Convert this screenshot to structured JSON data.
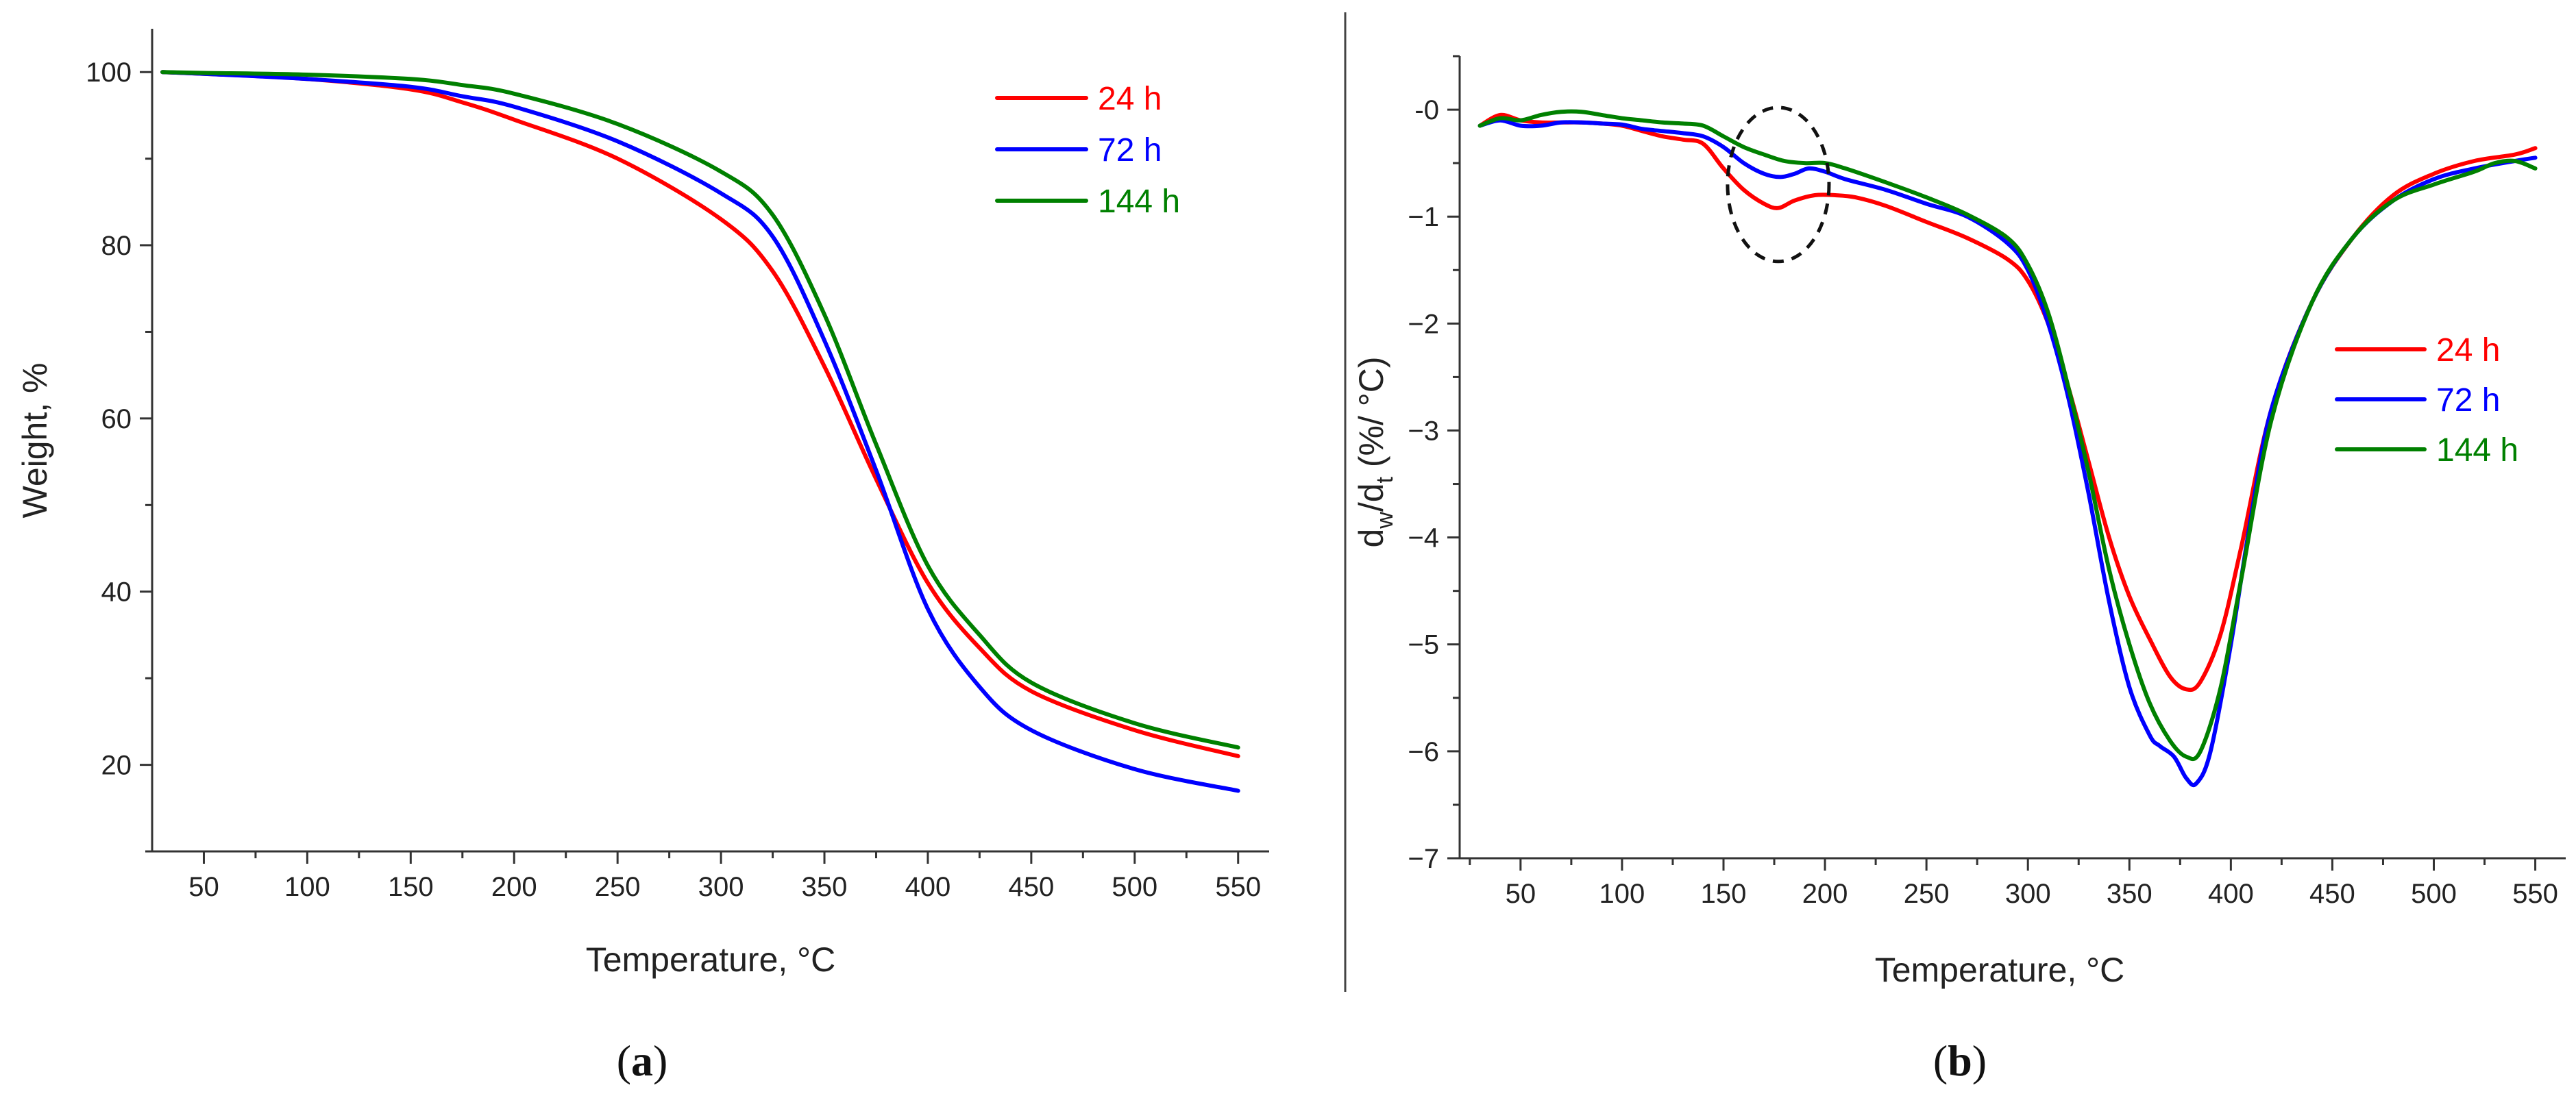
{
  "chart_data": [
    {
      "type": "line",
      "panel": "a",
      "title": "",
      "xlabel": "Temperature, °C",
      "ylabel": "Weight, %",
      "xlim": [
        25,
        565
      ],
      "ylim": [
        10,
        105
      ],
      "xticks": [
        50,
        100,
        150,
        200,
        250,
        300,
        350,
        400,
        450,
        500,
        550
      ],
      "yticks": [
        20,
        40,
        60,
        80,
        100
      ],
      "grid": false,
      "legend_position": "top-right",
      "series": [
        {
          "name": "24 h",
          "color": "#ff0000",
          "x": [
            30,
            50,
            100,
            150,
            175,
            200,
            250,
            300,
            325,
            350,
            375,
            400,
            425,
            450,
            500,
            550
          ],
          "y": [
            100,
            99.8,
            99.2,
            98,
            96.5,
            94.5,
            90,
            83,
            77,
            66,
            53,
            41,
            33.5,
            28.5,
            24,
            21
          ]
        },
        {
          "name": "72 h",
          "color": "#0000ff",
          "x": [
            30,
            50,
            100,
            150,
            175,
            200,
            250,
            300,
            325,
            350,
            375,
            400,
            425,
            450,
            500,
            550
          ],
          "y": [
            100,
            99.8,
            99.2,
            98.3,
            97.2,
            96,
            92,
            86,
            81,
            69,
            54,
            38,
            29,
            24,
            19.5,
            17
          ]
        },
        {
          "name": "144 h",
          "color": "#008000",
          "x": [
            30,
            50,
            100,
            150,
            175,
            200,
            250,
            300,
            325,
            350,
            375,
            400,
            425,
            450,
            500,
            550
          ],
          "y": [
            100,
            99.9,
            99.7,
            99.2,
            98.5,
            97.5,
            94,
            88.5,
            83.5,
            72,
            57,
            43,
            35,
            29.5,
            24.8,
            22
          ]
        }
      ]
    },
    {
      "type": "line",
      "panel": "b",
      "title": "",
      "xlabel": "Temperature, °C",
      "ylabel_main": "d",
      "ylabel_sub1": "w",
      "ylabel_mid": "/d",
      "ylabel_sub2": "t",
      "ylabel_tail": " (%/ °C)",
      "xlim": [
        20,
        565
      ],
      "ylim": [
        -7,
        0.5
      ],
      "xticks": [
        50,
        100,
        150,
        200,
        250,
        300,
        350,
        400,
        450,
        500,
        550
      ],
      "yticks": [
        0,
        -1,
        -2,
        -3,
        -4,
        -5,
        -6,
        -7
      ],
      "ytick_labels": [
        "-0",
        "−1",
        "−2",
        "−3",
        "−4",
        "−5",
        "−6",
        "−7"
      ],
      "grid": false,
      "legend_position": "right",
      "annotation": {
        "type": "dashed-ellipse",
        "center": [
          177,
          -0.7
        ],
        "radius_x": 25,
        "radius_y": 0.72
      },
      "series": [
        {
          "name": "24 h",
          "color": "#ff0000",
          "x": [
            30,
            40,
            50,
            60,
            70,
            80,
            90,
            100,
            110,
            120,
            130,
            140,
            150,
            160,
            170,
            177,
            185,
            195,
            205,
            215,
            230,
            250,
            270,
            290,
            300,
            310,
            320,
            330,
            340,
            350,
            360,
            370,
            378,
            385,
            395,
            405,
            420,
            440,
            460,
            480,
            500,
            520,
            540,
            550
          ],
          "y": [
            -0.15,
            -0.05,
            -0.1,
            -0.12,
            -0.12,
            -0.12,
            -0.13,
            -0.15,
            -0.2,
            -0.25,
            -0.28,
            -0.32,
            -0.55,
            -0.75,
            -0.88,
            -0.92,
            -0.85,
            -0.8,
            -0.8,
            -0.82,
            -0.9,
            -1.05,
            -1.2,
            -1.4,
            -1.6,
            -2.0,
            -2.6,
            -3.3,
            -4.0,
            -4.55,
            -4.95,
            -5.3,
            -5.42,
            -5.35,
            -4.9,
            -4.1,
            -2.8,
            -1.8,
            -1.2,
            -0.8,
            -0.6,
            -0.48,
            -0.42,
            -0.36
          ]
        },
        {
          "name": "72 h",
          "color": "#0000ff",
          "x": [
            30,
            40,
            50,
            60,
            70,
            80,
            90,
            100,
            110,
            120,
            130,
            140,
            150,
            160,
            170,
            178,
            185,
            192,
            200,
            210,
            230,
            250,
            270,
            290,
            300,
            310,
            320,
            330,
            340,
            350,
            360,
            365,
            372,
            378,
            383,
            390,
            400,
            410,
            420,
            440,
            460,
            480,
            500,
            520,
            540,
            550
          ],
          "y": [
            -0.15,
            -0.1,
            -0.15,
            -0.15,
            -0.12,
            -0.12,
            -0.13,
            -0.14,
            -0.18,
            -0.2,
            -0.22,
            -0.25,
            -0.35,
            -0.5,
            -0.6,
            -0.63,
            -0.6,
            -0.55,
            -0.58,
            -0.65,
            -0.75,
            -0.88,
            -1.0,
            -1.25,
            -1.5,
            -2.0,
            -2.7,
            -3.6,
            -4.6,
            -5.4,
            -5.85,
            -5.95,
            -6.05,
            -6.25,
            -6.3,
            -6.0,
            -5.0,
            -3.8,
            -2.8,
            -1.8,
            -1.2,
            -0.85,
            -0.65,
            -0.55,
            -0.48,
            -0.45
          ]
        },
        {
          "name": "144 h",
          "color": "#008000",
          "x": [
            30,
            40,
            50,
            60,
            70,
            80,
            90,
            100,
            110,
            120,
            130,
            140,
            150,
            160,
            170,
            180,
            190,
            200,
            210,
            230,
            250,
            270,
            290,
            300,
            310,
            320,
            330,
            340,
            350,
            360,
            370,
            378,
            385,
            395,
            405,
            420,
            440,
            460,
            480,
            500,
            520,
            530,
            540,
            550
          ],
          "y": [
            -0.15,
            -0.08,
            -0.1,
            -0.05,
            -0.02,
            -0.02,
            -0.05,
            -0.08,
            -0.1,
            -0.12,
            -0.13,
            -0.15,
            -0.25,
            -0.35,
            -0.42,
            -0.48,
            -0.5,
            -0.5,
            -0.55,
            -0.68,
            -0.82,
            -0.98,
            -1.2,
            -1.45,
            -1.9,
            -2.6,
            -3.4,
            -4.3,
            -5.0,
            -5.55,
            -5.9,
            -6.05,
            -6.0,
            -5.4,
            -4.4,
            -2.9,
            -1.8,
            -1.2,
            -0.85,
            -0.7,
            -0.58,
            -0.5,
            -0.48,
            -0.55
          ]
        }
      ]
    }
  ],
  "panel_labels": {
    "a": {
      "open": "(",
      "letter": "a",
      "close": ")"
    },
    "b": {
      "open": "(",
      "letter": "b",
      "close": ")"
    }
  }
}
